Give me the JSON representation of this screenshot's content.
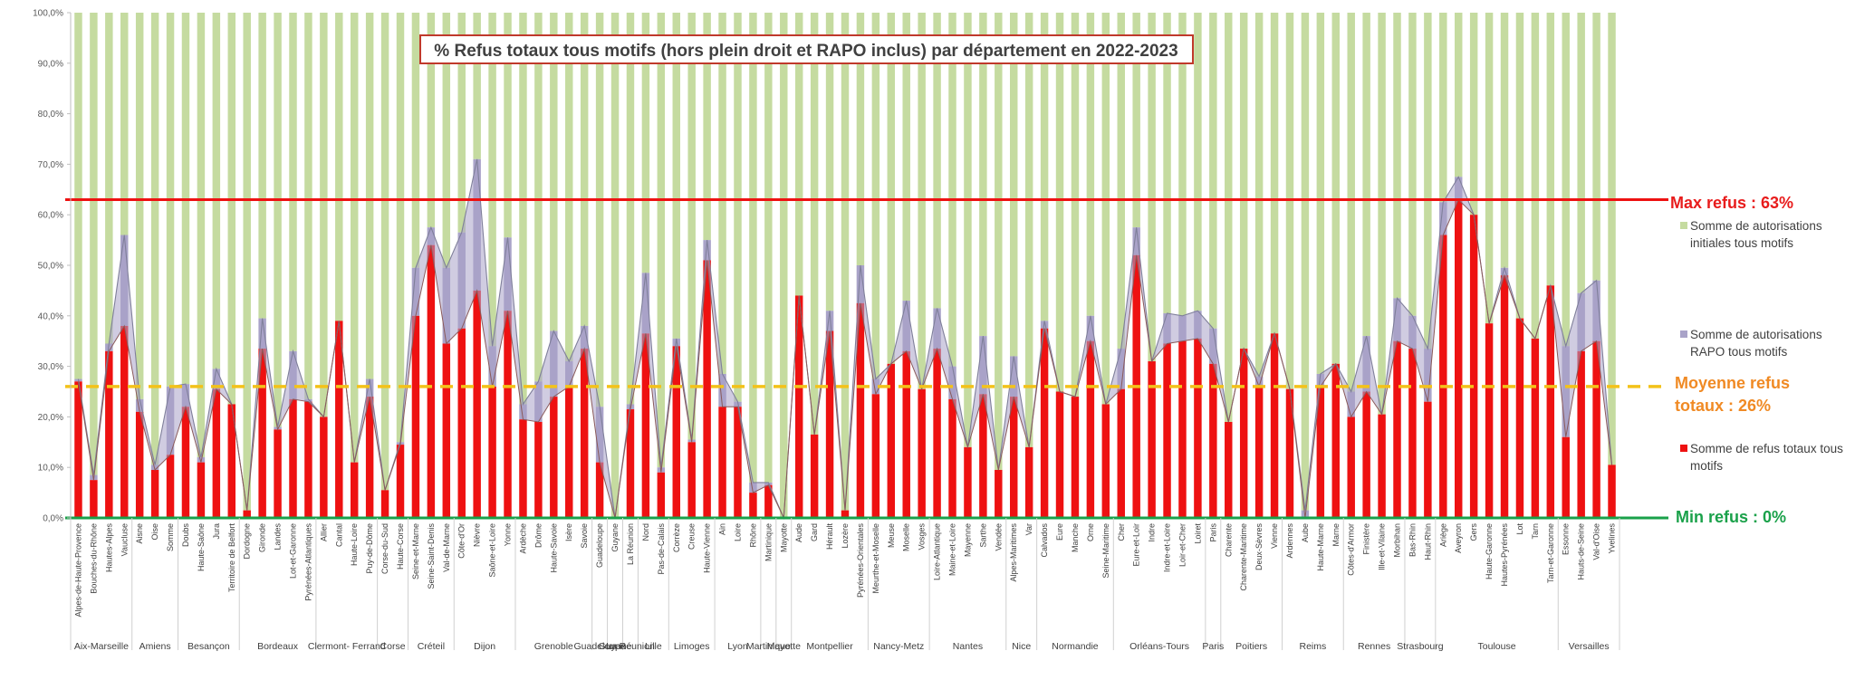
{
  "colors": {
    "green": "#c5dba0",
    "purple": "#a9a3c8",
    "red": "#ee1111",
    "max_line": "#ee1111",
    "avg_line": "#f3c21a",
    "min_line": "#1aa14a",
    "max_text": "#e81c1c",
    "avg_text": "#f08a24",
    "min_text": "#1aa14a",
    "title_border": "#c0392b"
  },
  "annotations": {
    "max": "Max refus : 63%",
    "avg_line1": "Moyenne refus",
    "avg_line2": "totaux : 26%",
    "min": "Min refus : 0%"
  },
  "chart_data": {
    "type": "bar",
    "title": "% Refus totaux tous motifs (hors plein droit et RAPO inclus) par département en 2022-2023",
    "stacked": true,
    "percent_stacked": true,
    "ylim": [
      0,
      100
    ],
    "yticks": [
      "0,0%",
      "10,0%",
      "20,0%",
      "30,0%",
      "40,0%",
      "50,0%",
      "60,0%",
      "70,0%",
      "80,0%",
      "90,0%",
      "100,0%"
    ],
    "categories": [
      "Alpes-de-Haute-Provence",
      "Bouches-du-Rhône",
      "Hautes-Alpes",
      "Vaucluse",
      "Aisne",
      "Oise",
      "Somme",
      "Doubs",
      "Haute-Saône",
      "Jura",
      "Territoire de Belfort",
      "Dordogne",
      "Gironde",
      "Landes",
      "Lot-et-Garonne",
      "Pyrénées-Atlantiques",
      "Allier",
      "Cantal",
      "Haute-Loire",
      "Puy-de-Dôme",
      "Corse-du-Sud",
      "Haute-Corse",
      "Seine-et-Marne",
      "Seine-Saint-Denis",
      "Val-de-Marne",
      "Côte-d'Or",
      "Nièvre",
      "Saône-et-Loire",
      "Yonne",
      "Ardèche",
      "Drôme",
      "Haute-Savoie",
      "Isère",
      "Savoie",
      "Guadeloupe",
      "Guyane",
      "La Réunion",
      "Nord",
      "Pas-de-Calais",
      "Corrèze",
      "Creuse",
      "Haute-Vienne",
      "Ain",
      "Loire",
      "Rhône",
      "Martinique",
      "Mayotte",
      "Aude",
      "Gard",
      "Hérault",
      "Lozère",
      "Pyrénées-Orientales",
      "Meurthe-et-Moselle",
      "Meuse",
      "Moselle",
      "Vosges",
      "Loire-Atlantique",
      "Maine-et-Loire",
      "Mayenne",
      "Sarthe",
      "Vendée",
      "Alpes-Maritimes",
      "Var",
      "Calvados",
      "Eure",
      "Manche",
      "Orne",
      "Seine-Maritime",
      "Cher",
      "Eure-et-Loir",
      "Indre",
      "Indre-et-Loire",
      "Loir-et-Cher",
      "Loiret",
      "Paris",
      "Charente",
      "Charente-Maritime",
      "Deux-Sèvres",
      "Vienne",
      "Ardennes",
      "Aube",
      "Haute-Marne",
      "Marne",
      "Côtes-d'Armor",
      "Finistère",
      "Ille-et-Vilaine",
      "Morbihan",
      "Bas-Rhin",
      "Haut-Rhin",
      "Ariège",
      "Aveyron",
      "Gers",
      "Haute-Garonne",
      "Hautes-Pyrénées",
      "Lot",
      "Tarn",
      "Tarn-et-Garonne",
      "Essonne",
      "Hauts-de-Seine",
      "Val-d'Oise",
      "Yvelines"
    ],
    "groups": [
      {
        "name": "Aix-Marseille",
        "count": 4
      },
      {
        "name": "Amiens",
        "count": 3
      },
      {
        "name": "Besançon",
        "count": 4
      },
      {
        "name": "Bordeaux",
        "count": 5
      },
      {
        "name": "Clermont- Ferrand",
        "count": 4
      },
      {
        "name": "Corse",
        "count": 2
      },
      {
        "name": "Créteil",
        "count": 3
      },
      {
        "name": "Dijon",
        "count": 4
      },
      {
        "name": "Grenoble",
        "count": 5
      },
      {
        "name": "Guadeloupe",
        "count": 1
      },
      {
        "name": "Guyane",
        "count": 1
      },
      {
        "name": "La Réunion",
        "count": 1
      },
      {
        "name": "Lille",
        "count": 2
      },
      {
        "name": "Limoges",
        "count": 3
      },
      {
        "name": "Lyon",
        "count": 3
      },
      {
        "name": "Martinique",
        "count": 1
      },
      {
        "name": "Mayotte",
        "count": 1
      },
      {
        "name": "Montpellier",
        "count": 5
      },
      {
        "name": "Nancy-Metz",
        "count": 4
      },
      {
        "name": "Nantes",
        "count": 5
      },
      {
        "name": "Nice",
        "count": 2
      },
      {
        "name": "Normandie",
        "count": 5
      },
      {
        "name": "Orléans-Tours",
        "count": 6
      },
      {
        "name": "Paris",
        "count": 1
      },
      {
        "name": "Poitiers",
        "count": 4
      },
      {
        "name": "Reims",
        "count": 4
      },
      {
        "name": "Rennes",
        "count": 4
      },
      {
        "name": "Strasbourg",
        "count": 2
      },
      {
        "name": "Toulouse",
        "count": 8
      },
      {
        "name": "Versailles",
        "count": 4
      }
    ],
    "series": [
      {
        "name": "Somme de refus totaux tous motifs",
        "color": "#ee1111",
        "values": [
          27,
          7.5,
          33,
          38,
          21,
          9.5,
          12.5,
          22,
          11,
          25.5,
          22.5,
          1.5,
          33.5,
          17.5,
          23.5,
          23,
          20,
          39,
          11,
          24,
          5.5,
          14.5,
          40,
          54,
          34.5,
          37.5,
          45,
          26,
          41,
          19.5,
          19,
          24,
          26,
          33.5,
          11,
          0,
          21.5,
          36.5,
          9,
          34,
          15,
          51,
          22,
          22,
          5,
          6.5,
          0,
          44,
          16.5,
          37,
          1.5,
          42.5,
          24.5,
          30.5,
          33,
          25.5,
          33.5,
          23.5,
          14,
          24.5,
          9.5,
          24,
          14,
          37.5,
          25,
          24,
          35,
          22.5,
          25.5,
          52,
          31,
          34.5,
          35,
          35.5,
          30.5,
          19,
          33.5,
          26,
          36.5,
          25.5,
          0,
          26,
          30.5,
          20,
          25,
          20.5,
          35,
          33.5,
          23,
          56,
          63,
          60,
          38.5,
          48,
          39.5,
          35.5,
          46,
          16,
          33,
          35,
          10.5
        ]
      },
      {
        "name": "Somme de autorisations RAPO tous motifs",
        "color": "#a9a3c8",
        "values": [
          0.5,
          1,
          1.5,
          18,
          2.5,
          1,
          13.5,
          4.5,
          1,
          4,
          0,
          0,
          6,
          0.5,
          9.5,
          0.5,
          0,
          0,
          0,
          3.5,
          0,
          0.5,
          9.5,
          3.5,
          15,
          19,
          26,
          8,
          14.5,
          3,
          8,
          13,
          5,
          4.5,
          11,
          0,
          1,
          12,
          1,
          1.5,
          0.5,
          4,
          6.5,
          1,
          2,
          0.5,
          0,
          0,
          0,
          4,
          0,
          7.5,
          3,
          0,
          10,
          0,
          8,
          6.5,
          0,
          11.5,
          0,
          8,
          0,
          1.5,
          0,
          0,
          5,
          0,
          8,
          5.5,
          0,
          6,
          5,
          5.5,
          7,
          0,
          0,
          2,
          0,
          0,
          1.5,
          2.5,
          0,
          5,
          11,
          0,
          8.5,
          6.5,
          10.5,
          6.5,
          4.5,
          0,
          0,
          1.5,
          0,
          0,
          0,
          18,
          11.5,
          12,
          0
        ]
      },
      {
        "name": "Somme de autorisations initiales tous motifs",
        "color": "#c5dba0",
        "remainder_to": 100
      }
    ],
    "reference_lines": [
      {
        "label": "Max refus : 63%",
        "y": 63
      },
      {
        "label": "Moyenne refus totaux : 26%",
        "y": 26
      },
      {
        "label": "Min refus : 0%",
        "y": 0
      }
    ],
    "legend_position": "right",
    "legend": [
      {
        "label": "Somme de autorisations initiales tous motifs",
        "color": "#c5dba0"
      },
      {
        "label": "Somme de autorisations RAPO tous motifs",
        "color": "#a9a3c8"
      },
      {
        "label": "Somme de refus totaux tous motifs",
        "color": "#ee1111"
      }
    ],
    "grid": false
  }
}
